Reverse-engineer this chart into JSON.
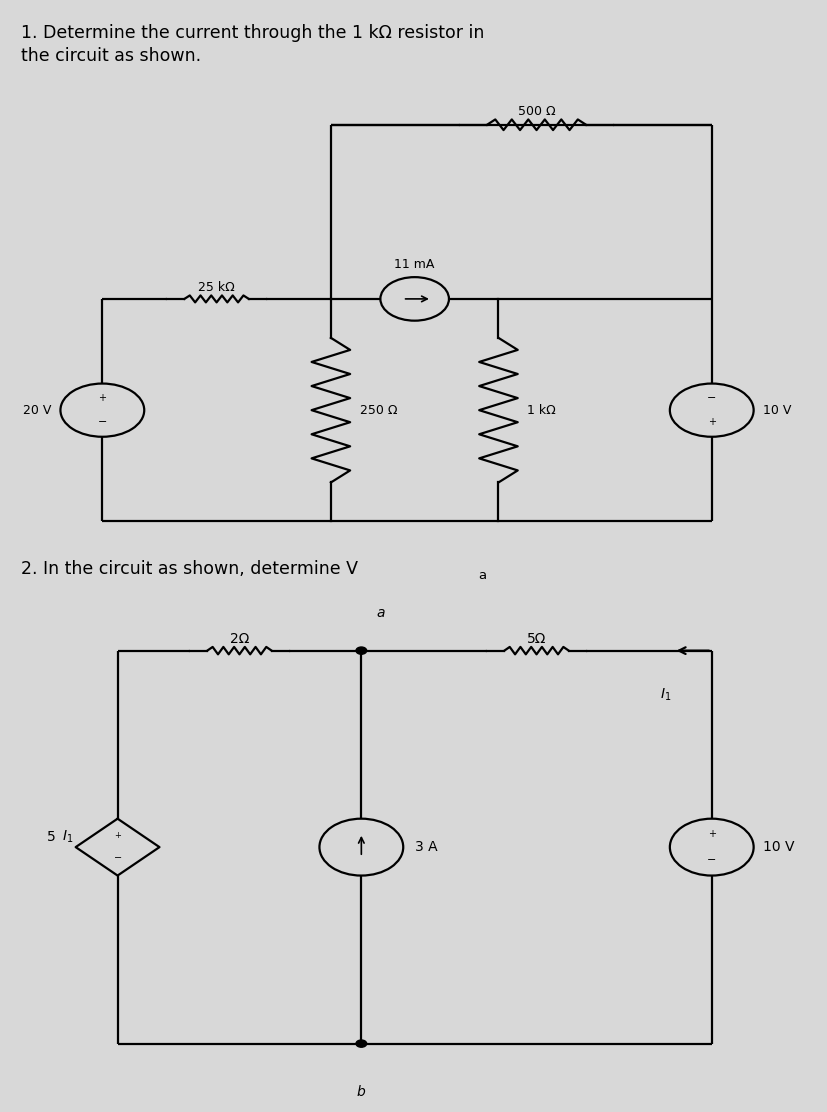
{
  "bg_color": "#d8d8d8",
  "circuit_bg": "#ffffff",
  "title1_line1": "1. Determine the current through the 1 kΩ resistor in",
  "title1_line2": "the circuit as shown.",
  "title2": "2. In the circuit as shown, determine V",
  "title2_sub": "a",
  "c1_labels": {
    "25kohm": "25 kΩ",
    "500ohm": "500 Ω",
    "250ohm": "250 Ω",
    "1kohm": "1 kΩ",
    "11mA": "11 mA",
    "20V": "20 V",
    "10V": "10 V"
  },
  "c2_labels": {
    "2ohm": "2Ω",
    "5ohm": "5Ω",
    "3A": "3 A",
    "10V": "10 V",
    "5I1": "5 I",
    "5I1_sub": "1",
    "I1": "I",
    "I1_sub": "1",
    "a": "a",
    "b": "b"
  },
  "lw": 1.6
}
